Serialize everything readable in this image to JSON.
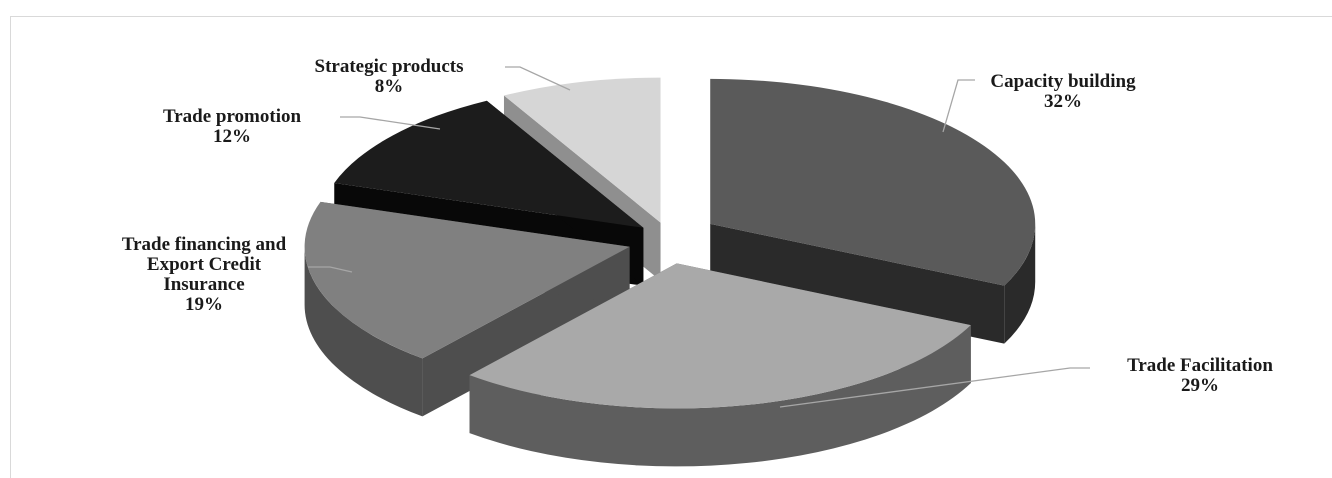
{
  "chart_data": {
    "type": "pie",
    "style": "3d-exploded",
    "categories": [
      "Capacity building",
      "Trade Facilitation",
      "Trade financing and Export Credit Insurance",
      "Trade promotion",
      "Strategic products"
    ],
    "values": [
      32,
      29,
      19,
      12,
      8
    ],
    "percent_labels": [
      "32%",
      "29%",
      "19%",
      "12%",
      "8%"
    ],
    "label_lines": [
      [
        "Capacity building"
      ],
      [
        "Trade Facilitation"
      ],
      [
        "Trade financing and",
        "Export Credit",
        "Insurance"
      ],
      [
        "Trade promotion"
      ],
      [
        "Strategic products"
      ]
    ],
    "colors": {
      "top": [
        "#5a5a5a",
        "#a9a9a9",
        "#808080",
        "#1c1c1c",
        "#d6d6d6"
      ],
      "side": [
        "#2a2a2a",
        "#5e5e5e",
        "#4e4e4e",
        "#080808",
        "#8f8f8f"
      ]
    },
    "title": "",
    "legend": "none"
  }
}
